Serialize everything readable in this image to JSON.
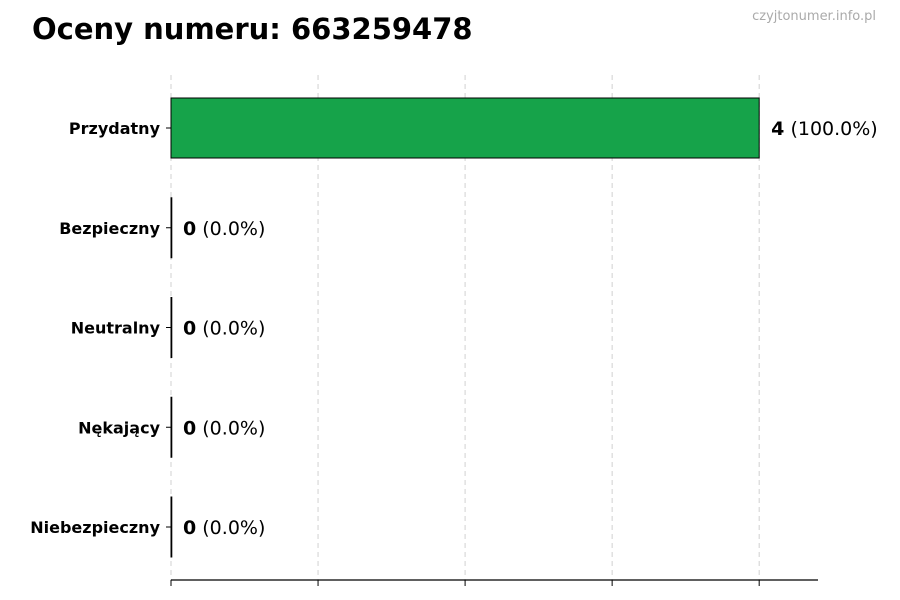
{
  "title": "Oceny numeru: 663259478",
  "watermark": "czyjtonumer.info.pl",
  "chart_data": {
    "type": "bar",
    "orientation": "horizontal",
    "title": "Oceny numeru: 663259478",
    "categories": [
      "Przydatny",
      "Bezpieczny",
      "Neutralny",
      "Nękający",
      "Niebezpieczny"
    ],
    "values": [
      4,
      0,
      0,
      0,
      0
    ],
    "labels": [
      {
        "count": "4",
        "pct": "(100.0%)"
      },
      {
        "count": "0",
        "pct": "(0.0%)"
      },
      {
        "count": "0",
        "pct": "(0.0%)"
      },
      {
        "count": "0",
        "pct": "(0.0%)"
      },
      {
        "count": "0",
        "pct": "(0.0%)"
      }
    ],
    "xlim": [
      0,
      4.4
    ],
    "xticks": [
      0,
      1,
      2,
      3,
      4
    ],
    "xtick_labels_shown": false,
    "grid": "vertical dashed",
    "bar_color": "#16a34a",
    "edge_color": "#000000"
  }
}
